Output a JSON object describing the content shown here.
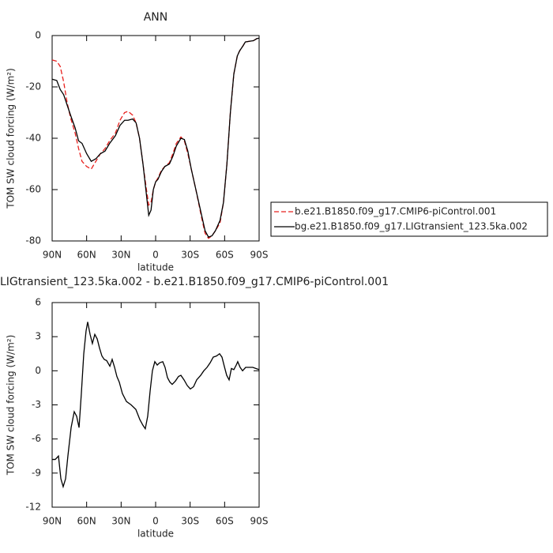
{
  "chart_data": [
    {
      "type": "line",
      "title": "ANN",
      "xlabel": "latitude",
      "ylabel": "TOM SW cloud forcing (W/m²)",
      "xlim": [
        90,
        -90
      ],
      "xticks": [
        {
          "value": 90,
          "label": "90N"
        },
        {
          "value": 60,
          "label": "60N"
        },
        {
          "value": 30,
          "label": "30N"
        },
        0,
        {
          "value": -30,
          "label": "30S"
        },
        {
          "value": -60,
          "label": "60S"
        },
        {
          "value": -90,
          "label": "90S"
        }
      ],
      "ylim": [
        -80,
        0
      ],
      "yticks": [
        0,
        -20,
        -40,
        -60,
        -80
      ],
      "legend": "right",
      "x": [
        90,
        86,
        83,
        80,
        77,
        74,
        70,
        67,
        64,
        60,
        56,
        52,
        48,
        44,
        40,
        35,
        31,
        27,
        24,
        20,
        17,
        14,
        11,
        8,
        6,
        4,
        2,
        0,
        -2,
        -5,
        -8,
        -12,
        -15,
        -18,
        -22,
        -25,
        -28,
        -31,
        -35,
        -40,
        -43,
        -46,
        -49,
        -52,
        -56,
        -59,
        -62,
        -65,
        -68,
        -71,
        -73,
        -76,
        -78,
        -82,
        -85,
        -88,
        -90
      ],
      "series": [
        {
          "name": "b.e21.B1850.f09_g17.CMIP6-piControl.001",
          "color": "#e8201d",
          "line_style": "dashed",
          "values": [
            -9.5,
            -10,
            -12,
            -18,
            -26,
            -32,
            -38,
            -44,
            -49,
            -51,
            -52,
            -49,
            -46,
            -44,
            -41,
            -38,
            -33,
            -30,
            -29.5,
            -31,
            -34,
            -40,
            -50,
            -60,
            -66,
            -65,
            -60,
            -57,
            -55.5,
            -52.5,
            -51,
            -49.5,
            -46,
            -42,
            -39.5,
            -41,
            -46,
            -52,
            -60,
            -71,
            -77,
            -79,
            -78,
            -76,
            -73,
            -65,
            -50,
            -30,
            -15,
            -8,
            -6,
            -4,
            -2.5,
            -2.2,
            -2,
            -1.2,
            -1
          ]
        },
        {
          "name": "bg.e21.B1850.f09_g17.LIGtransient_123.5ka.002",
          "color": "#000000",
          "line_style": "solid",
          "values": [
            -17,
            -17.5,
            -21,
            -23,
            -27,
            -31,
            -36,
            -41,
            -42,
            -46,
            -49,
            -48,
            -46,
            -45,
            -42,
            -39,
            -35,
            -33,
            -33,
            -32.5,
            -34,
            -40,
            -50,
            -62,
            -70,
            -68,
            -60,
            -57,
            -56,
            -53,
            -51,
            -50,
            -47,
            -43,
            -40,
            -40.5,
            -45,
            -52,
            -60,
            -70,
            -76,
            -78.5,
            -78,
            -76,
            -72,
            -65,
            -50,
            -30,
            -15,
            -8,
            -6,
            -4,
            -2.5,
            -2.2,
            -2,
            -1.2,
            -1
          ]
        }
      ]
    },
    {
      "type": "line",
      "title": "LIGtransient_123.5ka.002 - b.e21.B1850.f09_g17.CMIP6-piControl.001",
      "xlabel": "latitude",
      "ylabel": "TOM SW cloud forcing (W/m²)",
      "xlim": [
        90,
        -90
      ],
      "xticks": [
        {
          "value": 90,
          "label": "90N"
        },
        {
          "value": 60,
          "label": "60N"
        },
        {
          "value": 30,
          "label": "30N"
        },
        0,
        {
          "value": -30,
          "label": "30S"
        },
        {
          "value": -60,
          "label": "60S"
        },
        {
          "value": -90,
          "label": "90S"
        }
      ],
      "ylim": [
        -12,
        6
      ],
      "yticks": [
        -12,
        -9,
        -6,
        -3,
        0,
        3,
        6
      ],
      "x": [
        90,
        87.3,
        84.5,
        82.4,
        80.4,
        78.3,
        76.3,
        73.5,
        70.8,
        68.7,
        66.6,
        64.6,
        62.5,
        60.5,
        59.1,
        57,
        55,
        52.9,
        50.8,
        48.8,
        46.7,
        44.7,
        42.6,
        39.8,
        37.8,
        35.7,
        33.7,
        31.6,
        28.9,
        25.4,
        21.3,
        17.2,
        13.7,
        11,
        9,
        6.9,
        4.8,
        2.8,
        0.7,
        -1.4,
        -3.4,
        -6.2,
        -8.2,
        -10.3,
        -12.4,
        -14.4,
        -17.2,
        -19.9,
        -22,
        -24.7,
        -27.5,
        -30.2,
        -33,
        -35.7,
        -39.2,
        -41.9,
        -44.7,
        -47.4,
        -50.1,
        -52.9,
        -55.6,
        -57.7,
        -59.7,
        -61.8,
        -63.9,
        -65.9,
        -68,
        -70.1,
        -71.4,
        -73.5,
        -75.6,
        -78.3,
        -81.1,
        -84.5,
        -87.3,
        -90
      ],
      "series": [
        {
          "color": "#000000",
          "line_style": "solid",
          "values": [
            -7.8,
            -7.8,
            -7.5,
            -9.5,
            -10.2,
            -9.5,
            -7.5,
            -5,
            -3.6,
            -4,
            -5,
            -2,
            1.5,
            3.5,
            4.3,
            3.2,
            2.4,
            3.2,
            2.8,
            2,
            1.3,
            1,
            0.9,
            0.4,
            1,
            0.3,
            -0.5,
            -1,
            -2,
            -2.7,
            -3,
            -3.4,
            -4.3,
            -4.8,
            -5.1,
            -4,
            -1.8,
            0,
            0.8,
            0.5,
            0.7,
            0.8,
            0.3,
            -0.6,
            -1,
            -1.2,
            -0.9,
            -0.5,
            -0.4,
            -0.8,
            -1.3,
            -1.6,
            -1.4,
            -0.8,
            -0.4,
            0,
            0.3,
            0.7,
            1.2,
            1.3,
            1.5,
            1.2,
            0.4,
            -0.4,
            -0.8,
            0.2,
            0.1,
            0.5,
            0.8,
            0.3,
            0,
            0.3,
            0.3,
            0.3,
            0.2,
            0.1
          ]
        }
      ]
    }
  ]
}
